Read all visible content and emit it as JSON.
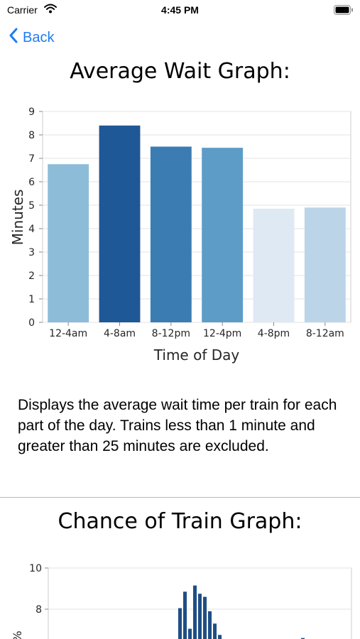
{
  "status_bar": {
    "carrier": "Carrier",
    "time": "4:45 PM",
    "wifi_icon": "wifi-icon",
    "battery_icon": "battery-full-icon"
  },
  "nav": {
    "back_label": "Back",
    "back_icon": "chevron-left-icon",
    "accent_color": "#1e7cf2"
  },
  "sections": {
    "average_wait": {
      "title": "Average Wait Graph:",
      "description": "Displays the average wait time per train for each part of the day. Trains less than 1 minute and greater than 25 minutes are excluded."
    },
    "chance_of_train": {
      "title": "Chance of Train Graph:"
    }
  },
  "chart_data": [
    {
      "type": "bar",
      "title": "",
      "xlabel": "Time of Day",
      "ylabel": "Minutes",
      "categories": [
        "12-4am",
        "4-8am",
        "8-12pm",
        "12-4pm",
        "4-8pm",
        "8-12am"
      ],
      "values": [
        6.75,
        8.4,
        7.5,
        7.45,
        4.85,
        4.9
      ],
      "colors": [
        "#8dbcd8",
        "#1f5896",
        "#3b7cb2",
        "#5d9cc7",
        "#dfe9f4",
        "#bcd4e8"
      ],
      "ylim": [
        0,
        9
      ],
      "yticks": [
        "0",
        "1",
        "2",
        "3",
        "4",
        "5",
        "6",
        "7",
        "8",
        "9"
      ],
      "grid": true
    },
    {
      "type": "bar",
      "title": "",
      "xlabel": "",
      "ylabel": "%",
      "partially_visible": true,
      "x": [
        0,
        1,
        2,
        3,
        4,
        5,
        6,
        7,
        8
      ],
      "values": [
        8.05,
        8.85,
        7.05,
        9.15,
        8.75,
        8.6,
        7.9,
        7.3,
        6.75
      ],
      "highlight": {
        "x": 25,
        "value": 6.6
      },
      "bar_color": "#1f4e85",
      "yticks": [
        "8",
        "10"
      ],
      "ylim": [
        6.6,
        10.2
      ],
      "grid": true
    }
  ]
}
